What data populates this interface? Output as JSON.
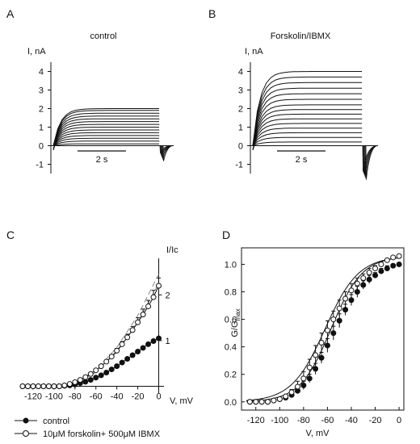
{
  "chart_data": [
    {
      "panel": "A",
      "type": "line",
      "title": "control",
      "ylabel": "I, nA",
      "yticks": [
        4,
        3,
        2,
        1,
        0,
        -1
      ],
      "ylim": [
        -1.5,
        4.5
      ],
      "scale_bar_label": "2 s",
      "steady_state_values_nA": [
        0.0,
        0.1,
        0.25,
        0.4,
        0.55,
        0.7,
        0.85,
        1.0,
        1.15,
        1.3,
        1.45,
        1.6,
        1.75,
        1.9,
        2.0
      ],
      "tail_min_nA": -0.4
    },
    {
      "panel": "B",
      "type": "line",
      "title": "Forskolin/IBMX",
      "ylabel": "I, nA",
      "yticks": [
        4,
        3,
        2,
        1,
        0,
        -1
      ],
      "ylim": [
        -1.5,
        4.5
      ],
      "scale_bar_label": "2 s",
      "steady_state_values_nA": [
        0.0,
        0.2,
        0.45,
        0.7,
        0.95,
        1.2,
        1.45,
        1.7,
        1.95,
        2.2,
        2.5,
        2.8,
        3.1,
        3.4,
        3.7,
        4.0
      ],
      "tail_min_nA": -1.4
    },
    {
      "panel": "C",
      "type": "scatter",
      "xlabel": "V, mV",
      "ylabel": "I/Ic",
      "xticks": [
        -120,
        -100,
        -80,
        -60,
        -40,
        -20,
        0
      ],
      "yticks": [
        1,
        2
      ],
      "xlim": [
        -130,
        5
      ],
      "ylim": [
        -0.15,
        2.8
      ],
      "series": [
        {
          "name": "control",
          "marker": "filled",
          "x": [
            -130,
            -125,
            -120,
            -115,
            -110,
            -105,
            -100,
            -95,
            -90,
            -85,
            -80,
            -75,
            -70,
            -65,
            -60,
            -55,
            -50,
            -45,
            -40,
            -35,
            -30,
            -25,
            -20,
            -15,
            -10,
            -5,
            0
          ],
          "y": [
            0,
            0,
            0,
            0,
            0,
            0,
            0,
            0,
            0.01,
            0.02,
            0.04,
            0.07,
            0.1,
            0.14,
            0.19,
            0.24,
            0.3,
            0.37,
            0.44,
            0.52,
            0.6,
            0.68,
            0.76,
            0.84,
            0.92,
            0.99,
            1.05
          ]
        },
        {
          "name": "10μM forskolin+ 500μM IBMX",
          "marker": "open",
          "x": [
            -130,
            -125,
            -120,
            -115,
            -110,
            -105,
            -100,
            -95,
            -90,
            -85,
            -80,
            -75,
            -70,
            -65,
            -60,
            -55,
            -50,
            -45,
            -40,
            -35,
            -30,
            -25,
            -20,
            -15,
            -10,
            -5,
            0
          ],
          "y": [
            0,
            0,
            0,
            0,
            0,
            0,
            0,
            0,
            0.02,
            0.05,
            0.09,
            0.14,
            0.2,
            0.27,
            0.35,
            0.44,
            0.54,
            0.65,
            0.78,
            0.92,
            1.07,
            1.23,
            1.4,
            1.57,
            1.75,
            1.95,
            2.2
          ],
          "err": [
            0,
            0,
            0,
            0,
            0,
            0,
            0,
            0,
            0,
            0,
            0,
            0,
            0,
            0,
            0.02,
            0.03,
            0.03,
            0.04,
            0.05,
            0.06,
            0.07,
            0.08,
            0.1,
            0.12,
            0.13,
            0.15,
            0.17
          ]
        }
      ],
      "dashed_fits": [
        {
          "x": [
            -95,
            -80,
            -60,
            -40,
            -20,
            0
          ],
          "y": [
            0,
            0.08,
            0.35,
            0.85,
            1.55,
            2.45
          ]
        },
        {
          "x": [
            -95,
            -80,
            -60,
            -40,
            -20,
            0
          ],
          "y": [
            0,
            0.07,
            0.3,
            0.75,
            1.4,
            2.25
          ]
        }
      ],
      "legend": [
        "control",
        "10μM forskolin+ 500μM IBMX"
      ]
    },
    {
      "panel": "D",
      "type": "scatter",
      "xlabel": "V, mV",
      "ylabel": "G/G",
      "ylabel_sub": "max",
      "xticks": [
        -120,
        -100,
        -80,
        -60,
        -40,
        -20,
        0
      ],
      "yticks": [
        0.0,
        0.2,
        0.4,
        0.6,
        0.8,
        1.0
      ],
      "xlim": [
        -132,
        4
      ],
      "ylim": [
        -0.06,
        1.12
      ],
      "series": [
        {
          "name": "control",
          "marker": "filled",
          "x": [
            -125,
            -120,
            -115,
            -110,
            -105,
            -100,
            -95,
            -90,
            -85,
            -80,
            -75,
            -70,
            -65,
            -60,
            -55,
            -50,
            -45,
            -40,
            -35,
            -30,
            -25,
            -20,
            -15,
            -10,
            -5,
            0
          ],
          "y": [
            0.0,
            0.0,
            0.0,
            0.0,
            0.01,
            0.02,
            0.03,
            0.05,
            0.08,
            0.12,
            0.17,
            0.24,
            0.32,
            0.41,
            0.5,
            0.59,
            0.67,
            0.74,
            0.8,
            0.85,
            0.89,
            0.92,
            0.95,
            0.97,
            0.99,
            1.0
          ],
          "err": [
            0,
            0,
            0,
            0,
            0,
            0,
            0,
            0,
            0.02,
            0.03,
            0.03,
            0.04,
            0.04,
            0.05,
            0.05,
            0.05,
            0.04,
            0.04,
            0.04,
            0.03,
            0.03,
            0.02,
            0.02,
            0.02,
            0.01,
            0.01
          ]
        },
        {
          "name": "10μM forskolin+ 500μM IBMX",
          "marker": "open",
          "x": [
            -125,
            -120,
            -115,
            -110,
            -105,
            -100,
            -95,
            -90,
            -85,
            -80,
            -75,
            -70,
            -65,
            -60,
            -55,
            -50,
            -45,
            -40,
            -35,
            -30,
            -25,
            -20,
            -15,
            -10,
            -5,
            0
          ],
          "y": [
            0.0,
            0.0,
            0.0,
            0.0,
            0.01,
            0.02,
            0.04,
            0.07,
            0.11,
            0.17,
            0.25,
            0.34,
            0.43,
            0.52,
            0.6,
            0.68,
            0.75,
            0.81,
            0.86,
            0.9,
            0.94,
            0.97,
            1.0,
            1.03,
            1.05,
            1.06
          ],
          "err": [
            0,
            0,
            0,
            0,
            0,
            0,
            0,
            0.02,
            0.04,
            0.05,
            0.06,
            0.07,
            0.07,
            0.07,
            0.06,
            0.06,
            0.05,
            0.05,
            0.04,
            0.03,
            0.03,
            0.02,
            0.02,
            0.01,
            0.01,
            0.01
          ]
        }
      ],
      "fit_curves": [
        {
          "v_half": -57,
          "slope": 13
        },
        {
          "v_half": -62,
          "slope": 14
        }
      ]
    }
  ],
  "panel_letters": [
    "A",
    "B",
    "C",
    "D"
  ]
}
